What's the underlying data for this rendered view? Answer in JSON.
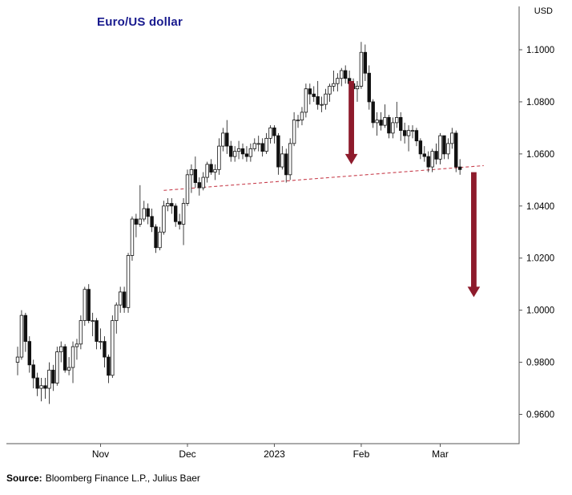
{
  "source": {
    "label": "Source:",
    "text": "Bloomberg Finance L.P., Julius Baer"
  },
  "colors": {
    "title": "#181a8e",
    "candle": "#111111",
    "axis": "#555555",
    "trendline": "#c8404e",
    "arrow": "#8e1b2c"
  },
  "chart_data": {
    "type": "candlestick",
    "title": "Euro/US dollar",
    "unit": "USD",
    "ylabel": "USD",
    "grid": false,
    "legend": false,
    "ylim": [
      0.96,
      1.1
    ],
    "y_ticks": [
      "1.1000",
      "1.0800",
      "1.0600",
      "1.0400",
      "1.0200",
      "1.0000",
      "0.9800",
      "0.9600"
    ],
    "x_ticks": [
      {
        "label": "Nov",
        "index": 21
      },
      {
        "label": "Dec",
        "index": 43
      },
      {
        "label": "2023",
        "index": 65
      },
      {
        "label": "Feb",
        "index": 87
      },
      {
        "label": "Mar",
        "index": 107
      }
    ],
    "candles": [
      [
        "2022-10-03",
        0.98,
        0.986,
        0.975,
        0.982
      ],
      [
        "2022-10-04",
        0.982,
        1.0,
        0.981,
        0.998
      ],
      [
        "2022-10-05",
        0.998,
        0.999,
        0.984,
        0.988
      ],
      [
        "2022-10-06",
        0.988,
        0.99,
        0.976,
        0.979
      ],
      [
        "2022-10-07",
        0.979,
        0.981,
        0.97,
        0.974
      ],
      [
        "2022-10-10",
        0.974,
        0.976,
        0.967,
        0.97
      ],
      [
        "2022-10-11",
        0.97,
        0.974,
        0.965,
        0.971
      ],
      [
        "2022-10-12",
        0.971,
        0.974,
        0.966,
        0.97
      ],
      [
        "2022-10-13",
        0.97,
        0.98,
        0.964,
        0.977
      ],
      [
        "2022-10-14",
        0.977,
        0.979,
        0.969,
        0.972
      ],
      [
        "2022-10-17",
        0.972,
        0.986,
        0.971,
        0.984
      ],
      [
        "2022-10-18",
        0.984,
        0.988,
        0.98,
        0.986
      ],
      [
        "2022-10-19",
        0.986,
        0.987,
        0.976,
        0.977
      ],
      [
        "2022-10-20",
        0.977,
        0.982,
        0.975,
        0.978
      ],
      [
        "2022-10-21",
        0.978,
        0.988,
        0.972,
        0.986
      ],
      [
        "2022-10-24",
        0.986,
        0.989,
        0.981,
        0.987
      ],
      [
        "2022-10-25",
        0.987,
        0.998,
        0.985,
        0.996
      ],
      [
        "2022-10-26",
        0.996,
        1.009,
        0.994,
        1.008
      ],
      [
        "2022-10-27",
        1.008,
        1.01,
        0.995,
        0.996
      ],
      [
        "2022-10-28",
        0.996,
        0.999,
        0.99,
        0.996
      ],
      [
        "2022-10-31",
        0.996,
        0.997,
        0.985,
        0.988
      ],
      [
        "2022-11-01",
        0.988,
        0.993,
        0.985,
        0.988
      ],
      [
        "2022-11-02",
        0.988,
        0.99,
        0.978,
        0.982
      ],
      [
        "2022-11-03",
        0.982,
        0.983,
        0.972,
        0.975
      ],
      [
        "2022-11-04",
        0.975,
        0.998,
        0.974,
        0.996
      ],
      [
        "2022-11-07",
        0.996,
        1.003,
        0.991,
        1.002
      ],
      [
        "2022-11-08",
        1.002,
        1.009,
        0.999,
        1.007
      ],
      [
        "2022-11-09",
        1.007,
        1.009,
        0.999,
        1.001
      ],
      [
        "2022-11-10",
        1.001,
        1.022,
        0.999,
        1.021
      ],
      [
        "2022-11-11",
        1.021,
        1.036,
        1.019,
        1.035
      ],
      [
        "2022-11-14",
        1.035,
        1.037,
        1.028,
        1.033
      ],
      [
        "2022-11-15",
        1.033,
        1.048,
        1.032,
        1.035
      ],
      [
        "2022-11-16",
        1.035,
        1.042,
        1.034,
        1.039
      ],
      [
        "2022-11-17",
        1.039,
        1.041,
        1.033,
        1.036
      ],
      [
        "2022-11-18",
        1.036,
        1.039,
        1.03,
        1.032
      ],
      [
        "2022-11-21",
        1.032,
        1.033,
        1.022,
        1.024
      ],
      [
        "2022-11-22",
        1.024,
        1.032,
        1.023,
        1.03
      ],
      [
        "2022-11-23",
        1.03,
        1.042,
        1.029,
        1.04
      ],
      [
        "2022-11-24",
        1.04,
        1.043,
        1.038,
        1.041
      ],
      [
        "2022-11-25",
        1.041,
        1.043,
        1.037,
        1.04
      ],
      [
        "2022-11-28",
        1.04,
        1.041,
        1.032,
        1.034
      ],
      [
        "2022-11-29",
        1.034,
        1.037,
        1.031,
        1.033
      ],
      [
        "2022-11-30",
        1.033,
        1.043,
        1.025,
        1.041
      ],
      [
        "2022-12-01",
        1.041,
        1.054,
        1.04,
        1.052
      ],
      [
        "2022-12-02",
        1.052,
        1.056,
        1.045,
        1.054
      ],
      [
        "2022-12-05",
        1.054,
        1.059,
        1.047,
        1.049
      ],
      [
        "2022-12-06",
        1.049,
        1.051,
        1.044,
        1.047
      ],
      [
        "2022-12-07",
        1.047,
        1.053,
        1.046,
        1.051
      ],
      [
        "2022-12-08",
        1.051,
        1.057,
        1.049,
        1.056
      ],
      [
        "2022-12-09",
        1.056,
        1.058,
        1.052,
        1.053
      ],
      [
        "2022-12-12",
        1.053,
        1.056,
        1.05,
        1.054
      ],
      [
        "2022-12-13",
        1.054,
        1.066,
        1.052,
        1.063
      ],
      [
        "2022-12-14",
        1.063,
        1.07,
        1.061,
        1.068
      ],
      [
        "2022-12-15",
        1.068,
        1.073,
        1.06,
        1.063
      ],
      [
        "2022-12-16",
        1.063,
        1.065,
        1.057,
        1.059
      ],
      [
        "2022-12-19",
        1.059,
        1.063,
        1.057,
        1.061
      ],
      [
        "2022-12-20",
        1.061,
        1.065,
        1.058,
        1.062
      ],
      [
        "2022-12-21",
        1.062,
        1.064,
        1.058,
        1.06
      ],
      [
        "2022-12-22",
        1.06,
        1.063,
        1.057,
        1.059
      ],
      [
        "2022-12-23",
        1.059,
        1.064,
        1.057,
        1.062
      ],
      [
        "2022-12-26",
        1.062,
        1.066,
        1.061,
        1.064
      ],
      [
        "2022-12-27",
        1.064,
        1.067,
        1.061,
        1.064
      ],
      [
        "2022-12-28",
        1.064,
        1.066,
        1.059,
        1.061
      ],
      [
        "2022-12-29",
        1.061,
        1.068,
        1.06,
        1.066
      ],
      [
        "2022-12-30",
        1.066,
        1.071,
        1.064,
        1.07
      ],
      [
        "2023-01-02",
        1.07,
        1.071,
        1.064,
        1.067
      ],
      [
        "2023-01-03",
        1.067,
        1.068,
        1.052,
        1.055
      ],
      [
        "2023-01-04",
        1.055,
        1.063,
        1.054,
        1.06
      ],
      [
        "2023-01-05",
        1.06,
        1.062,
        1.049,
        1.052
      ],
      [
        "2023-01-06",
        1.052,
        1.066,
        1.05,
        1.064
      ],
      [
        "2023-01-09",
        1.064,
        1.076,
        1.063,
        1.073
      ],
      [
        "2023-01-10",
        1.073,
        1.075,
        1.07,
        1.073
      ],
      [
        "2023-01-11",
        1.073,
        1.078,
        1.071,
        1.076
      ],
      [
        "2023-01-12",
        1.076,
        1.087,
        1.074,
        1.085
      ],
      [
        "2023-01-13",
        1.085,
        1.087,
        1.079,
        1.083
      ],
      [
        "2023-01-16",
        1.083,
        1.086,
        1.08,
        1.082
      ],
      [
        "2023-01-17",
        1.082,
        1.088,
        1.077,
        1.079
      ],
      [
        "2023-01-18",
        1.079,
        1.082,
        1.076,
        1.079
      ],
      [
        "2023-01-19",
        1.079,
        1.085,
        1.077,
        1.083
      ],
      [
        "2023-01-20",
        1.083,
        1.087,
        1.08,
        1.086
      ],
      [
        "2023-01-23",
        1.086,
        1.092,
        1.084,
        1.087
      ],
      [
        "2023-01-24",
        1.087,
        1.091,
        1.084,
        1.089
      ],
      [
        "2023-01-25",
        1.089,
        1.093,
        1.086,
        1.092
      ],
      [
        "2023-01-26",
        1.092,
        1.094,
        1.087,
        1.089
      ],
      [
        "2023-01-27",
        1.089,
        1.092,
        1.085,
        1.087
      ],
      [
        "2023-01-30",
        1.087,
        1.089,
        1.083,
        1.085
      ],
      [
        "2023-01-31",
        1.085,
        1.088,
        1.08,
        1.086
      ],
      [
        "2023-02-01",
        1.086,
        1.103,
        1.085,
        1.099
      ],
      [
        "2023-02-02",
        1.099,
        1.102,
        1.088,
        1.091
      ],
      [
        "2023-02-03",
        1.091,
        1.094,
        1.077,
        1.08
      ],
      [
        "2023-02-06",
        1.08,
        1.081,
        1.07,
        1.072
      ],
      [
        "2023-02-07",
        1.072,
        1.076,
        1.067,
        1.073
      ],
      [
        "2023-02-08",
        1.073,
        1.076,
        1.069,
        1.071
      ],
      [
        "2023-02-09",
        1.071,
        1.079,
        1.07,
        1.074
      ],
      [
        "2023-02-10",
        1.074,
        1.075,
        1.066,
        1.068
      ],
      [
        "2023-02-13",
        1.068,
        1.074,
        1.066,
        1.072
      ],
      [
        "2023-02-14",
        1.072,
        1.08,
        1.07,
        1.074
      ],
      [
        "2023-02-15",
        1.074,
        1.076,
        1.065,
        1.069
      ],
      [
        "2023-02-16",
        1.069,
        1.072,
        1.064,
        1.067
      ],
      [
        "2023-02-17",
        1.067,
        1.071,
        1.061,
        1.069
      ],
      [
        "2023-02-20",
        1.069,
        1.071,
        1.066,
        1.069
      ],
      [
        "2023-02-21",
        1.069,
        1.07,
        1.063,
        1.065
      ],
      [
        "2023-02-22",
        1.065,
        1.066,
        1.058,
        1.06
      ],
      [
        "2023-02-23",
        1.06,
        1.063,
        1.057,
        1.059
      ],
      [
        "2023-02-24",
        1.059,
        1.061,
        1.053,
        1.055
      ],
      [
        "2023-02-27",
        1.055,
        1.062,
        1.053,
        1.061
      ],
      [
        "2023-02-28",
        1.061,
        1.064,
        1.056,
        1.058
      ],
      [
        "2023-03-01",
        1.058,
        1.068,
        1.056,
        1.067
      ],
      [
        "2023-03-02",
        1.067,
        1.067,
        1.058,
        1.06
      ],
      [
        "2023-03-03",
        1.06,
        1.066,
        1.058,
        1.064
      ],
      [
        "2023-03-06",
        1.064,
        1.07,
        1.062,
        1.068
      ],
      [
        "2023-03-07",
        1.068,
        1.069,
        1.053,
        1.055
      ],
      [
        "2023-03-08",
        1.055,
        1.058,
        1.052,
        1.054
      ]
    ],
    "trendline": {
      "style": "dashed",
      "from": {
        "index": 37,
        "price": 1.046
      },
      "to": {
        "index": 118,
        "price": 1.0555
      }
    },
    "arrows": [
      {
        "index": 84.5,
        "from_price": 1.088,
        "to_price": 1.056
      },
      {
        "index": 115.5,
        "from_price": 1.053,
        "to_price": 1.005
      }
    ]
  }
}
